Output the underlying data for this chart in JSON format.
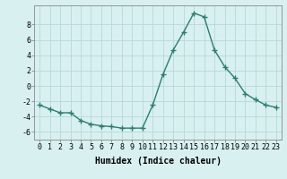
{
  "x": [
    0,
    1,
    2,
    3,
    4,
    5,
    6,
    7,
    8,
    9,
    10,
    11,
    12,
    13,
    14,
    15,
    16,
    17,
    18,
    19,
    20,
    21,
    22,
    23
  ],
  "y": [
    -2.5,
    -3.0,
    -3.5,
    -3.5,
    -4.5,
    -5.0,
    -5.2,
    -5.3,
    -5.5,
    -5.5,
    -5.5,
    -2.5,
    1.5,
    4.7,
    7.0,
    9.5,
    9.0,
    4.7,
    2.5,
    1.0,
    -1.0,
    -1.8,
    -2.5,
    -2.8
  ],
  "line_color": "#2e7d6e",
  "marker": "+",
  "marker_size": 4,
  "bg_color": "#d8f0f0",
  "grid_color": "#b8d8d8",
  "xlabel": "Humidex (Indice chaleur)",
  "xlabel_fontsize": 7,
  "tick_fontsize": 6,
  "ylim": [
    -7,
    10.5
  ],
  "xlim": [
    -0.5,
    23.5
  ],
  "yticks": [
    -6,
    -4,
    -2,
    0,
    2,
    4,
    6,
    8
  ],
  "xticks": [
    0,
    1,
    2,
    3,
    4,
    5,
    6,
    7,
    8,
    9,
    10,
    11,
    12,
    13,
    14,
    15,
    16,
    17,
    18,
    19,
    20,
    21,
    22,
    23
  ],
  "line_width": 1.0
}
